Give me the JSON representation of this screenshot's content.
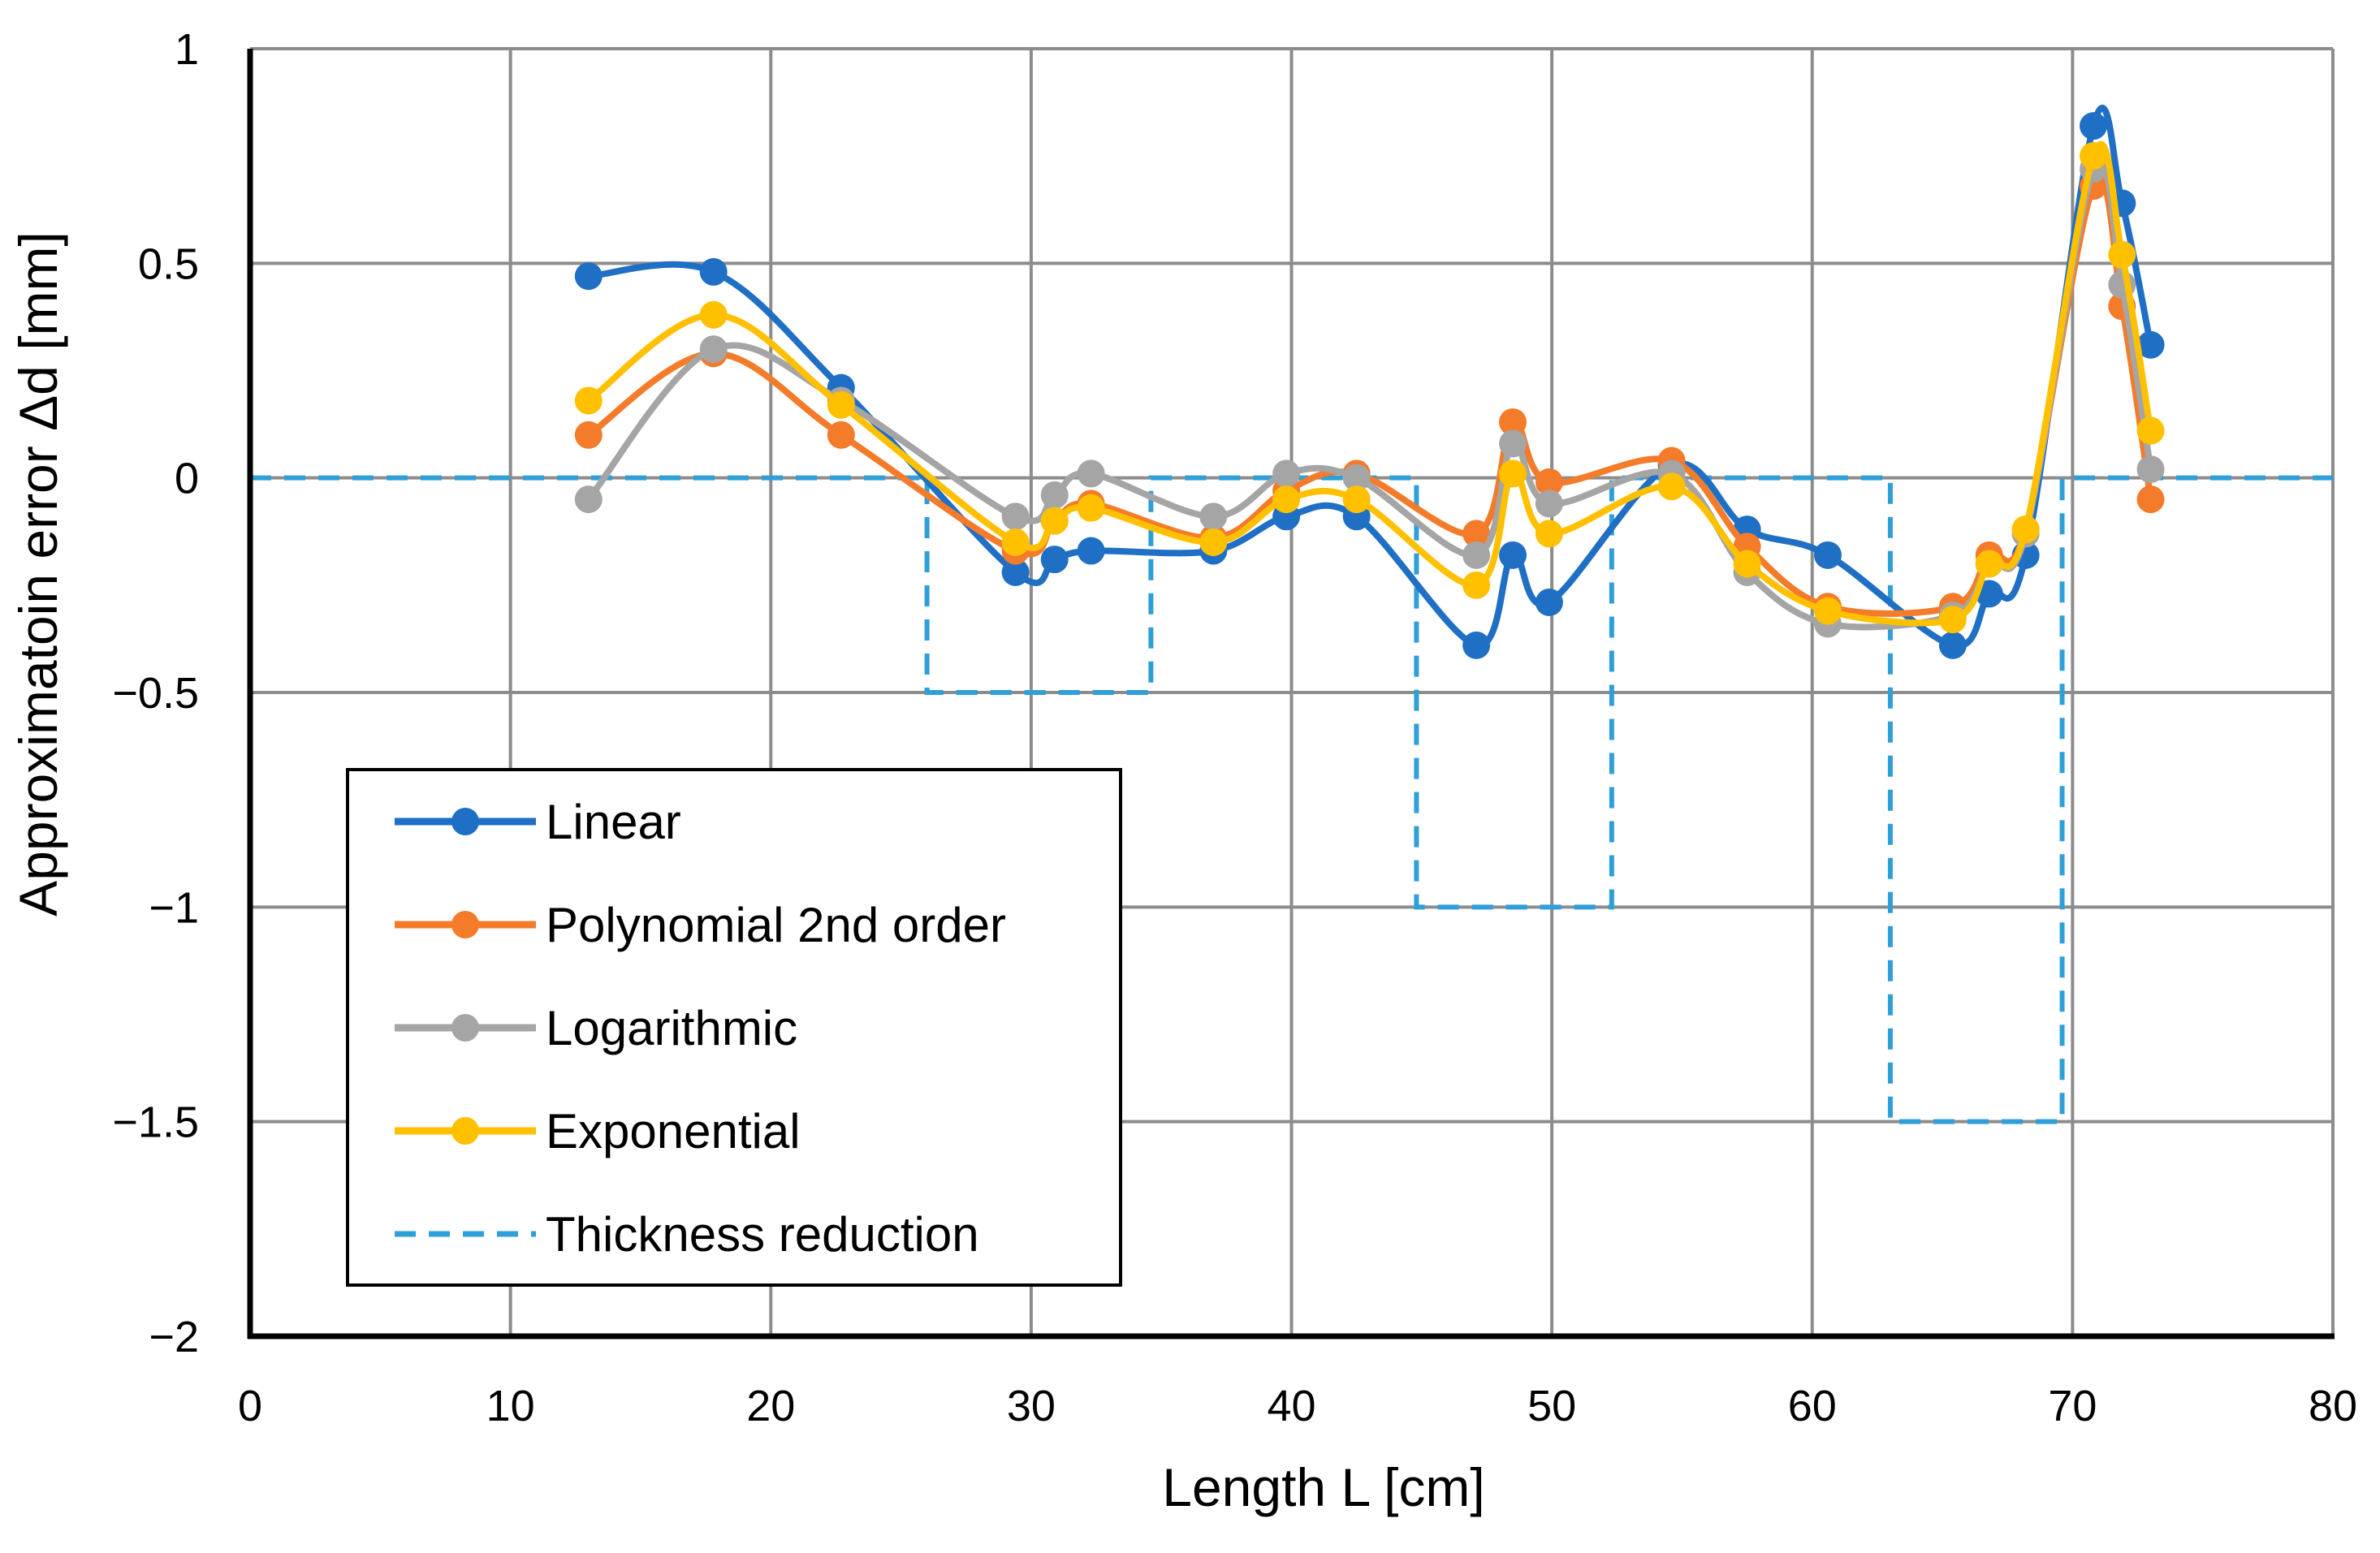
{
  "chart_data": {
    "type": "line",
    "title": "",
    "xlabel": "Length  L   [cm]",
    "ylabel": "Approximatoin error Δd  [mm]",
    "xlim": [
      0,
      80
    ],
    "ylim": [
      -2,
      1
    ],
    "xticks": [
      0,
      10,
      20,
      30,
      40,
      50,
      60,
      70,
      80
    ],
    "yticks": [
      1,
      0.5,
      0,
      -0.5,
      -1,
      -1.5,
      -2
    ],
    "ytick_labels": [
      "1",
      "0.5",
      "0",
      "−0.5",
      "−1",
      "−1.5",
      "−2"
    ],
    "grid": true,
    "legend_position": "bottom-left",
    "x": [
      13,
      17.8,
      22.7,
      29.4,
      30.9,
      32.3,
      37,
      39.8,
      42.5,
      47.1,
      48.5,
      49.9,
      54.6,
      57.5,
      60.6,
      65.4,
      66.8,
      68.2,
      70.8,
      71.9,
      73
    ],
    "series": [
      {
        "name": "Linear",
        "color": "#1f6fc5",
        "values": [
          0.47,
          0.48,
          0.21,
          -0.22,
          -0.19,
          -0.17,
          -0.17,
          -0.09,
          -0.09,
          -0.39,
          -0.18,
          -0.29,
          0.03,
          -0.12,
          -0.18,
          -0.39,
          -0.27,
          -0.18,
          0.82,
          0.64,
          0.31
        ]
      },
      {
        "name": "Polynomial 2nd order",
        "color": "#f47b2a",
        "values": [
          0.1,
          0.29,
          0.1,
          -0.17,
          -0.1,
          -0.06,
          -0.14,
          -0.03,
          0.01,
          -0.13,
          0.13,
          -0.01,
          0.04,
          -0.16,
          -0.3,
          -0.3,
          -0.18,
          -0.12,
          0.68,
          0.4,
          -0.05
        ]
      },
      {
        "name": "Logarithmic",
        "color": "#a5a5a5",
        "values": [
          -0.05,
          0.3,
          0.18,
          -0.09,
          -0.04,
          0.01,
          -0.09,
          0.01,
          0.0,
          -0.18,
          0.08,
          -0.06,
          0.01,
          -0.22,
          -0.34,
          -0.32,
          -0.2,
          -0.13,
          0.72,
          0.45,
          0.02
        ]
      },
      {
        "name": "Exponential",
        "color": "#ffc000",
        "values": [
          0.18,
          0.38,
          0.17,
          -0.15,
          -0.1,
          -0.07,
          -0.15,
          -0.05,
          -0.05,
          -0.25,
          0.01,
          -0.13,
          -0.02,
          -0.2,
          -0.31,
          -0.33,
          -0.2,
          -0.12,
          0.75,
          0.52,
          0.11
        ]
      }
    ],
    "reference_series": {
      "name": "Thickness reduction",
      "color": "#2e9fd8",
      "style": "dashed",
      "x": [
        0,
        26,
        26,
        34.6,
        34.6,
        44.8,
        44.8,
        52.3,
        52.3,
        63,
        63,
        69.6,
        69.6,
        80
      ],
      "values": [
        0,
        0,
        -0.5,
        -0.5,
        0,
        0,
        -1,
        -1,
        0,
        0,
        -1.5,
        -1.5,
        0,
        0
      ]
    }
  }
}
